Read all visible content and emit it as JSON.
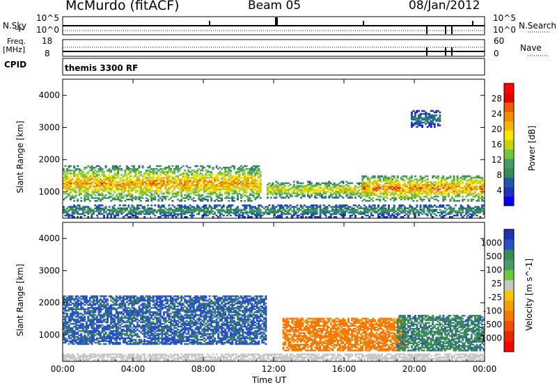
{
  "header": {
    "station": "McMurdo (fitACF)",
    "beam": "Beam 05",
    "date": "08/Jan/2012"
  },
  "strip_panels": {
    "nsky": {
      "label": "N.Sky",
      "left_ticks": [
        "10^5",
        "10^0"
      ],
      "right_label": "N.Search",
      "right_ticks": [
        "10^5",
        "10^0"
      ]
    },
    "freq": {
      "label_top": "Freq.",
      "label_bottom": "[MHz]",
      "left_ticks": [
        "18",
        "8"
      ],
      "right_label": "Nave",
      "right_ticks": [
        "60",
        "0"
      ]
    },
    "cpid": {
      "label": "CPID",
      "program": "themis 3300 RF"
    }
  },
  "colors": {
    "power_scale": [
      "#0000ff",
      "#2030c0",
      "#1c5aa6",
      "#3a8a58",
      "#4a9a64",
      "#6ec83c",
      "#c8d200",
      "#f5e600",
      "#f5b400",
      "#f58c00",
      "#f05a00",
      "#e60000",
      "#ff0000"
    ],
    "velocity_scale": [
      "#1e32b4",
      "#2850c8",
      "#3a8a58",
      "#4a9a64",
      "#6ec83c",
      "#c8c8c8",
      "#f5c800",
      "#f5a000",
      "#f57800",
      "#f05000",
      "#e62800",
      "#ff0000"
    ],
    "grey_ground": "#c8c8c8"
  },
  "chart_data": [
    {
      "type": "heatmap",
      "title": "",
      "xlabel": "Time UT",
      "ylabel": "Slant Range [km]",
      "x_ticks": [
        "00:00",
        "04:00",
        "08:00",
        "12:00",
        "16:00",
        "20:00",
        "00:00"
      ],
      "y_ticks": [
        "1000",
        "2000",
        "3000",
        "4000"
      ],
      "xlim": [
        0,
        24
      ],
      "ylim": [
        180,
        4500
      ],
      "colorbar": {
        "label": "Power [dB]",
        "ticks": [
          "4",
          "8",
          "12",
          "16",
          "20",
          "24",
          "28"
        ],
        "range": [
          0,
          30
        ]
      },
      "features": [
        {
          "t_start": 0.0,
          "t_end": 11.2,
          "r_low": 700,
          "r_high": 1800,
          "power_peak": 26
        },
        {
          "t_start": 0.0,
          "t_end": 24.0,
          "r_low": 200,
          "r_high": 600,
          "power_peak": 12
        },
        {
          "t_start": 11.6,
          "t_end": 17.5,
          "r_low": 800,
          "r_high": 1300,
          "power_peak": 22
        },
        {
          "t_start": 17.0,
          "t_end": 24.0,
          "r_low": 700,
          "r_high": 1500,
          "power_peak": 28
        },
        {
          "t_start": 19.8,
          "t_end": 21.5,
          "r_low": 3000,
          "r_high": 3500,
          "power_peak": 10
        }
      ]
    },
    {
      "type": "heatmap",
      "title": "",
      "xlabel": "Time UT",
      "ylabel": "Slant Range [km]",
      "x_ticks": [
        "00:00",
        "04:00",
        "08:00",
        "12:00",
        "16:00",
        "20:00",
        "00:00"
      ],
      "y_ticks": [
        "1000",
        "2000",
        "3000",
        "4000"
      ],
      "xlim": [
        0,
        24
      ],
      "ylim": [
        180,
        4500
      ],
      "colorbar": {
        "label": "Velocity [m s^-1]",
        "ticks": [
          "1000",
          "500",
          "100",
          "25",
          "-25",
          "-100",
          "-500",
          "-1000"
        ],
        "range": [
          -1000,
          1000
        ]
      },
      "features": [
        {
          "t_start": 0.0,
          "t_end": 11.5,
          "r_low": 700,
          "r_high": 2200,
          "velocity": 300
        },
        {
          "t_start": 12.5,
          "t_end": 19.5,
          "r_low": 500,
          "r_high": 1500,
          "velocity": -150
        },
        {
          "t_start": 19.0,
          "t_end": 24.0,
          "r_low": 500,
          "r_high": 1600,
          "velocity": 200
        },
        {
          "t_start": 0.0,
          "t_end": 24.0,
          "r_low": 200,
          "r_high": 400,
          "velocity": 0
        }
      ]
    }
  ]
}
